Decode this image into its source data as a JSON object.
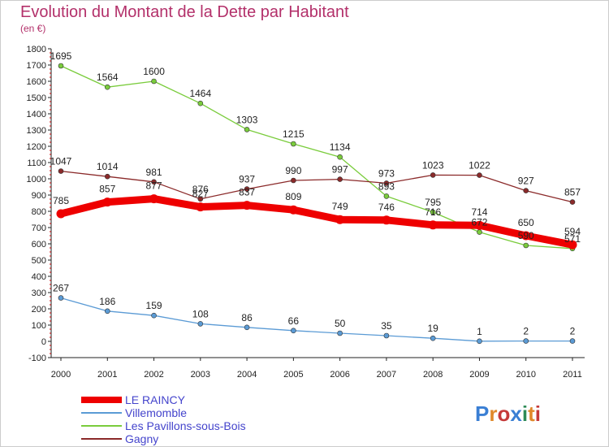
{
  "chart_data": {
    "type": "line",
    "title": "Evolution du Montant de la Dette par Habitant",
    "subtitle": "(en €)",
    "xlabel": "",
    "ylabel": "",
    "x": [
      "2000",
      "2001",
      "2002",
      "2003",
      "2004",
      "2005",
      "2006",
      "2007",
      "2008",
      "2009",
      "2010",
      "2011"
    ],
    "ylim": [
      -100,
      1800
    ],
    "ystep": 100,
    "grid": false,
    "legend_position": "bottom-left",
    "series": [
      {
        "name": "LE RAINCY",
        "color": "#ee0000",
        "values": [
          785,
          857,
          877,
          827,
          837,
          809,
          749,
          746,
          716,
          714,
          650,
          594
        ]
      },
      {
        "name": "Villemomble",
        "color": "#5b9bd5",
        "values": [
          267,
          186,
          159,
          108,
          86,
          66,
          50,
          35,
          19,
          1,
          2,
          2
        ]
      },
      {
        "name": "Les Pavillons-sous-Bois",
        "color": "#7acc3c",
        "values": [
          1695,
          1564,
          1600,
          1464,
          1303,
          1215,
          1134,
          893,
          795,
          672,
          590,
          571
        ]
      },
      {
        "name": "Gagny",
        "color": "#8b2a2a",
        "values": [
          1047,
          1014,
          981,
          876,
          937,
          990,
          997,
          973,
          1023,
          1022,
          927,
          857
        ]
      }
    ]
  },
  "brand": {
    "logo_text": "Proxiti"
  }
}
